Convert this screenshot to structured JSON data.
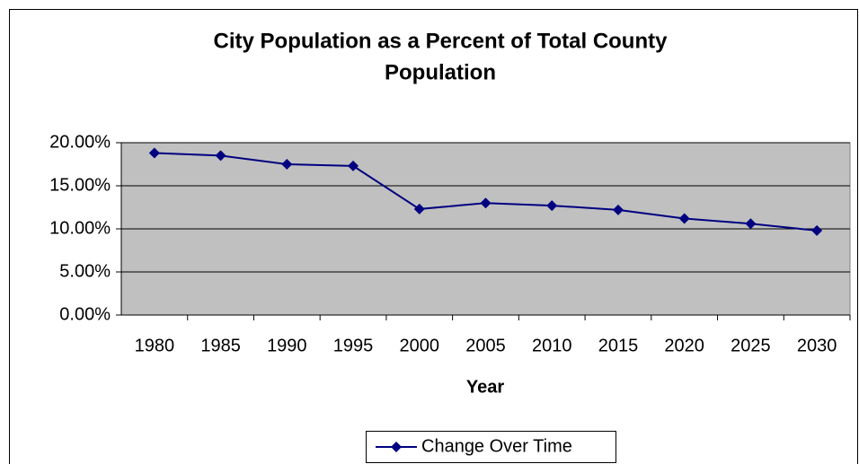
{
  "chart_data": {
    "type": "line",
    "title": [
      "City Population as a Percent of Total County",
      "Population"
    ],
    "x_label": "Year",
    "categories": [
      "1980",
      "1985",
      "1990",
      "1995",
      "2000",
      "2005",
      "2010",
      "2015",
      "2020",
      "2025",
      "2030"
    ],
    "series": [
      {
        "name": "Change Over Time",
        "color": "#000080",
        "values": [
          18.8,
          18.5,
          17.5,
          17.3,
          12.3,
          13.0,
          12.7,
          12.2,
          11.2,
          10.6,
          9.8
        ]
      }
    ],
    "ylim": [
      0,
      20
    ],
    "yticks": [
      {
        "value": 0,
        "label": "0.00%"
      },
      {
        "value": 5,
        "label": "5.00%"
      },
      {
        "value": 10,
        "label": "10.00%"
      },
      {
        "value": 15,
        "label": "15.00%"
      },
      {
        "value": 20,
        "label": "20.00%"
      }
    ],
    "grid": true,
    "legend": "bottom"
  }
}
